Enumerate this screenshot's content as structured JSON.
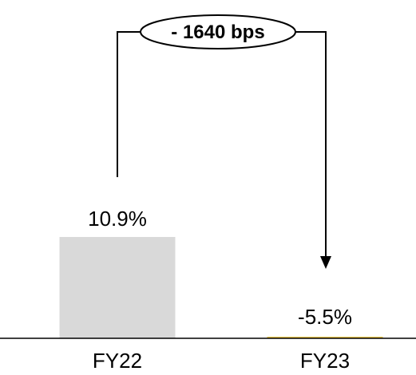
{
  "chart_data": {
    "type": "bar",
    "categories": [
      "FY22",
      "FY23"
    ],
    "values": [
      10.9,
      -5.5
    ],
    "value_labels": [
      "10.9%",
      "-5.5%"
    ],
    "value_unit": "%",
    "bar_colors": [
      "#d9d9d9",
      "#f2c94c"
    ],
    "annotation": {
      "text": "- 1640 bps",
      "from": "FY22",
      "to": "FY23",
      "shape": "ellipse-callout-arrow"
    },
    "title": "",
    "xlabel": "",
    "ylabel": "",
    "grid": false,
    "legend": "none"
  },
  "colors": {
    "baseline": "#000000",
    "text": "#000000",
    "connector": "#000000"
  }
}
